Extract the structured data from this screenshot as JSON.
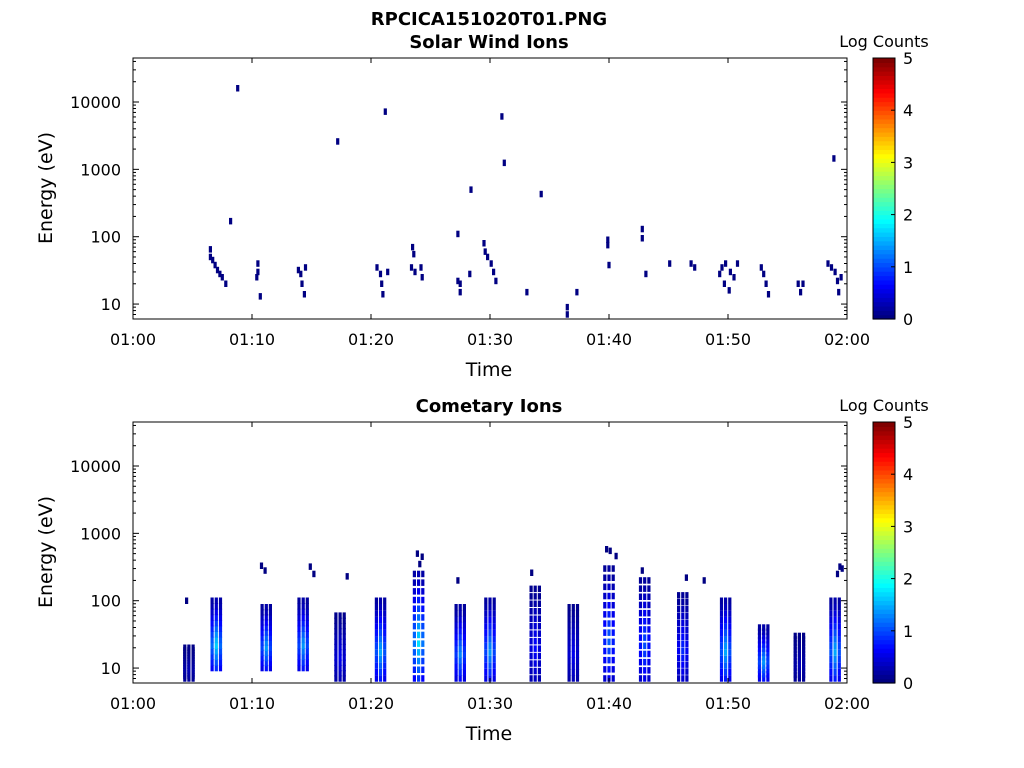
{
  "figure_title": "RPCICA151020T01.PNG",
  "chart_data": [
    {
      "type": "heatmap",
      "title": "Solar Wind Ions",
      "xlabel": "Time",
      "ylabel": "Energy (eV)",
      "y_scale": "log",
      "ylim": [
        6,
        45000
      ],
      "xlim": [
        "01:00",
        "02:00"
      ],
      "x_ticks": [
        "01:00",
        "01:10",
        "01:20",
        "01:30",
        "01:40",
        "01:50",
        "02:00"
      ],
      "y_ticks": [
        "10",
        "100",
        "1000",
        "10000"
      ],
      "colorbar": {
        "label": "Log Counts",
        "min": 0,
        "max": 5,
        "ticks": [
          "0",
          "1",
          "2",
          "3",
          "4",
          "5"
        ],
        "colormap": "jet"
      },
      "grid": false,
      "points": [
        [
          8.8,
          16000,
          0
        ],
        [
          17.2,
          2600,
          0
        ],
        [
          21.2,
          7200,
          0
        ],
        [
          31.0,
          6100,
          0
        ],
        [
          31.2,
          1250,
          0
        ],
        [
          28.4,
          500,
          0
        ],
        [
          34.3,
          430,
          0
        ],
        [
          58.9,
          1450,
          0
        ],
        [
          8.2,
          170,
          0
        ],
        [
          27.3,
          110,
          0
        ],
        [
          6.5,
          65,
          0
        ],
        [
          6.5,
          50,
          0
        ],
        [
          6.7,
          45,
          0
        ],
        [
          6.9,
          38,
          0
        ],
        [
          7.1,
          32,
          0
        ],
        [
          7.3,
          28,
          0
        ],
        [
          7.5,
          25,
          0
        ],
        [
          7.8,
          20,
          0
        ],
        [
          10.5,
          40,
          0
        ],
        [
          10.5,
          30,
          0
        ],
        [
          10.4,
          25,
          0
        ],
        [
          10.7,
          13,
          0
        ],
        [
          13.9,
          32,
          0
        ],
        [
          14.1,
          28,
          0
        ],
        [
          14.2,
          20,
          0
        ],
        [
          14.4,
          14,
          0
        ],
        [
          14.5,
          35,
          0
        ],
        [
          20.5,
          35,
          0
        ],
        [
          20.8,
          28,
          0
        ],
        [
          20.9,
          20,
          0
        ],
        [
          21.0,
          14,
          0
        ],
        [
          21.4,
          30,
          0
        ],
        [
          23.5,
          70,
          0
        ],
        [
          23.6,
          55,
          0
        ],
        [
          23.4,
          35,
          0
        ],
        [
          23.7,
          30,
          0
        ],
        [
          24.3,
          25,
          0
        ],
        [
          24.2,
          35,
          0
        ],
        [
          27.3,
          22,
          0
        ],
        [
          27.5,
          20,
          0
        ],
        [
          27.5,
          15,
          0
        ],
        [
          28.3,
          28,
          0
        ],
        [
          29.5,
          80,
          0
        ],
        [
          29.6,
          60,
          0
        ],
        [
          29.8,
          50,
          0
        ],
        [
          30.1,
          40,
          0
        ],
        [
          30.3,
          30,
          0
        ],
        [
          30.5,
          22,
          0
        ],
        [
          33.1,
          15,
          0
        ],
        [
          36.5,
          9,
          0
        ],
        [
          36.5,
          7,
          0
        ],
        [
          37.3,
          15,
          0
        ],
        [
          39.9,
          90,
          0
        ],
        [
          39.9,
          75,
          0
        ],
        [
          40.0,
          38,
          0
        ],
        [
          42.8,
          130,
          0
        ],
        [
          42.8,
          95,
          0
        ],
        [
          43.1,
          28,
          0
        ],
        [
          45.1,
          40,
          0
        ],
        [
          46.9,
          40,
          0
        ],
        [
          47.2,
          35,
          0
        ],
        [
          49.3,
          28,
          0
        ],
        [
          49.5,
          35,
          0
        ],
        [
          49.8,
          40,
          0
        ],
        [
          50.2,
          30,
          0
        ],
        [
          50.5,
          25,
          0
        ],
        [
          50.8,
          40,
          0
        ],
        [
          49.7,
          20,
          0
        ],
        [
          50.1,
          16,
          0
        ],
        [
          52.8,
          35,
          0
        ],
        [
          53.0,
          28,
          0
        ],
        [
          53.2,
          20,
          0
        ],
        [
          53.4,
          14,
          0
        ],
        [
          55.9,
          20,
          0
        ],
        [
          56.1,
          15,
          0
        ],
        [
          56.3,
          20,
          0
        ],
        [
          58.4,
          40,
          0
        ],
        [
          58.7,
          35,
          0
        ],
        [
          59.0,
          30,
          0
        ],
        [
          59.2,
          22,
          0
        ],
        [
          59.3,
          15,
          0
        ],
        [
          59.5,
          25,
          0
        ]
      ]
    },
    {
      "type": "heatmap",
      "title": "Cometary Ions",
      "xlabel": "Time",
      "ylabel": "Energy (eV)",
      "y_scale": "log",
      "ylim": [
        6,
        45000
      ],
      "xlim": [
        "01:00",
        "02:00"
      ],
      "x_ticks": [
        "01:00",
        "01:10",
        "01:20",
        "01:30",
        "01:40",
        "01:50",
        "02:00"
      ],
      "y_ticks": [
        "10",
        "100",
        "1000",
        "10000"
      ],
      "colorbar": {
        "label": "Log Counts",
        "min": 0,
        "max": 5,
        "ticks": [
          "0",
          "1",
          "2",
          "3",
          "4",
          "5"
        ],
        "colormap": "jet"
      },
      "grid": false,
      "bursts": [
        {
          "t": 4.7,
          "lo": 7,
          "hi": 20,
          "v": 0.3
        },
        {
          "t": 7.0,
          "lo": 10,
          "hi": 100,
          "v": 1.8
        },
        {
          "t": 11.2,
          "lo": 10,
          "hi": 80,
          "v": 1.5
        },
        {
          "t": 14.3,
          "lo": 10,
          "hi": 100,
          "v": 1.5
        },
        {
          "t": 17.4,
          "lo": 7,
          "hi": 60,
          "v": 0.6
        },
        {
          "t": 20.8,
          "lo": 7,
          "hi": 100,
          "v": 1.6
        },
        {
          "t": 24.0,
          "lo": 7,
          "hi": 250,
          "v": 1.9
        },
        {
          "t": 27.5,
          "lo": 7,
          "hi": 80,
          "v": 1.4
        },
        {
          "t": 30.0,
          "lo": 7,
          "hi": 100,
          "v": 1.5
        },
        {
          "t": 33.8,
          "lo": 7,
          "hi": 150,
          "v": 0.7
        },
        {
          "t": 37.0,
          "lo": 7,
          "hi": 80,
          "v": 0.6
        },
        {
          "t": 40.0,
          "lo": 7,
          "hi": 300,
          "v": 1.2
        },
        {
          "t": 43.0,
          "lo": 7,
          "hi": 200,
          "v": 1.1
        },
        {
          "t": 46.2,
          "lo": 7,
          "hi": 120,
          "v": 0.9
        },
        {
          "t": 49.8,
          "lo": 7,
          "hi": 100,
          "v": 1.6
        },
        {
          "t": 53.0,
          "lo": 7,
          "hi": 40,
          "v": 1.5
        },
        {
          "t": 56.0,
          "lo": 7,
          "hi": 30,
          "v": 0.3
        },
        {
          "t": 59.0,
          "lo": 7,
          "hi": 100,
          "v": 1.6
        }
      ],
      "sparse": [
        [
          4.5,
          100,
          0
        ],
        [
          18.0,
          230,
          0
        ],
        [
          10.8,
          330,
          0
        ],
        [
          11.1,
          280,
          0
        ],
        [
          14.9,
          320,
          0
        ],
        [
          15.2,
          250,
          0
        ],
        [
          23.9,
          500,
          0
        ],
        [
          24.3,
          450,
          0
        ],
        [
          24.1,
          350,
          0
        ],
        [
          27.3,
          200,
          0
        ],
        [
          33.5,
          260,
          0
        ],
        [
          39.8,
          580,
          0
        ],
        [
          40.1,
          550,
          0
        ],
        [
          40.6,
          460,
          0
        ],
        [
          42.8,
          280,
          0
        ],
        [
          46.5,
          220,
          0
        ],
        [
          48.0,
          200,
          0
        ],
        [
          59.2,
          250,
          0
        ],
        [
          59.4,
          320,
          0
        ],
        [
          59.6,
          300,
          0
        ]
      ]
    }
  ]
}
